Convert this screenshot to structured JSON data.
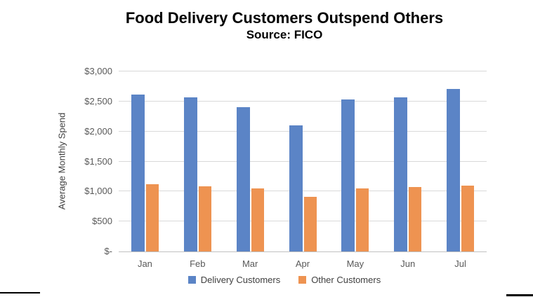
{
  "header": {
    "title": "Food Delivery Customers Outspend Others",
    "subtitle": "Source: FICO"
  },
  "chart_data": {
    "type": "bar",
    "title": "Food Delivery Customers Outspend Others",
    "subtitle": "Source: FICO",
    "categories": [
      "Jan",
      "Feb",
      "Mar",
      "Apr",
      "May",
      "Jun",
      "Jul"
    ],
    "series": [
      {
        "name": "Delivery Customers",
        "color": "#5B84C6",
        "values": [
          2620,
          2570,
          2400,
          2100,
          2530,
          2570,
          2710
        ]
      },
      {
        "name": "Other Customers",
        "color": "#EE9351",
        "values": [
          1120,
          1080,
          1055,
          915,
          1050,
          1075,
          1100
        ]
      }
    ],
    "xlabel": "",
    "ylabel": "Average Monthly Spend",
    "ylim": [
      0,
      3000
    ],
    "ytick_interval": 500,
    "yticks": [
      {
        "value": 0,
        "label": "$-"
      },
      {
        "value": 500,
        "label": "$500"
      },
      {
        "value": 1000,
        "label": "$1,000"
      },
      {
        "value": 1500,
        "label": "$1,500"
      },
      {
        "value": 2000,
        "label": "$2,000"
      },
      {
        "value": 2500,
        "label": "$2,500"
      },
      {
        "value": 3000,
        "label": "$3,000"
      }
    ],
    "grid": true,
    "legend_position": "bottom"
  },
  "colors": {
    "grid": "#D9D9D9",
    "axis": "#C0C0C0",
    "tick_text": "#595959",
    "title_text": "#000000"
  }
}
